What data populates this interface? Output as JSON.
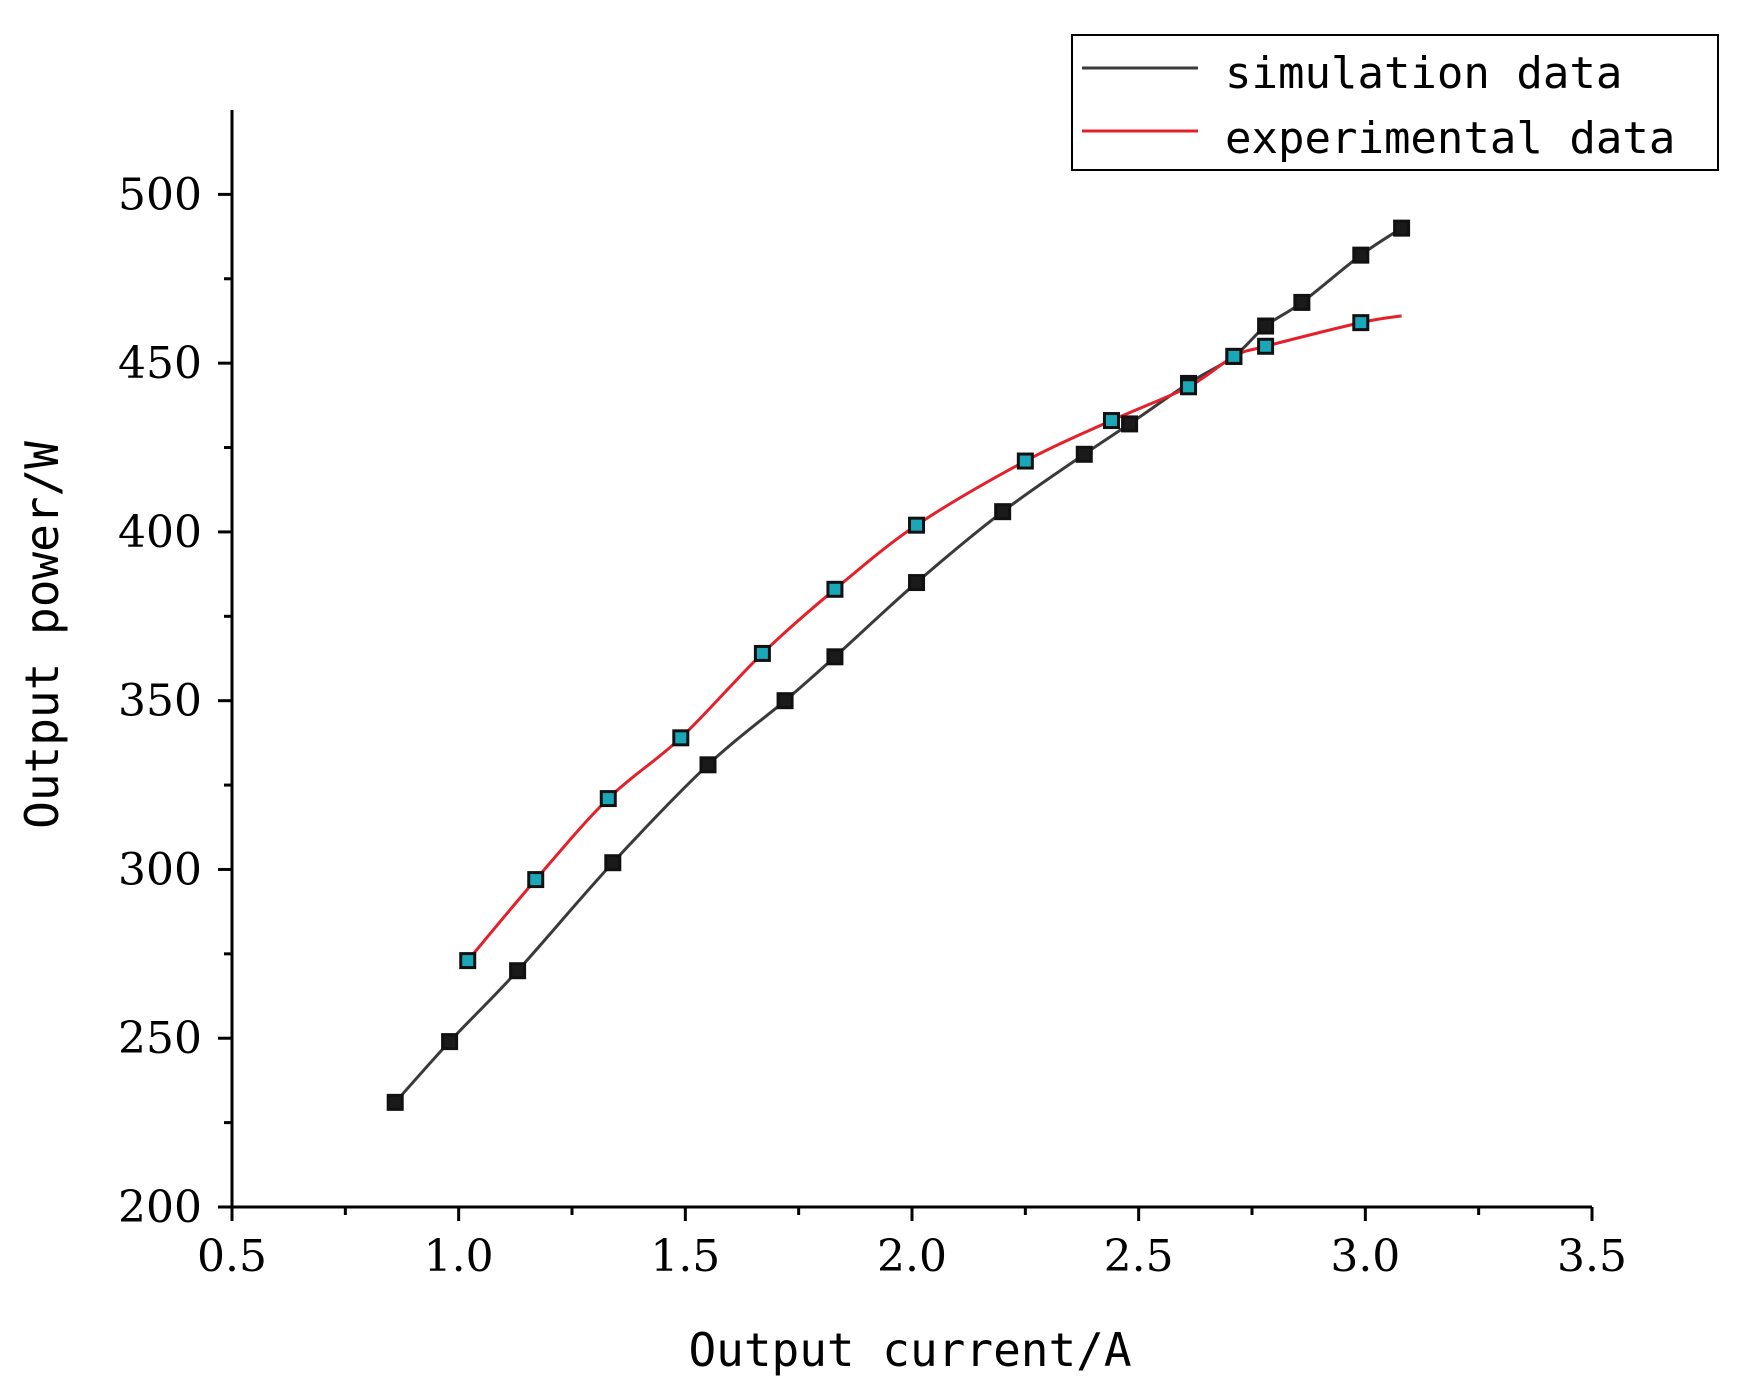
{
  "chart_data": {
    "type": "line",
    "title": "",
    "xlabel": "Output current/A",
    "ylabel": "Output power/W",
    "xlim": [
      0.5,
      3.5
    ],
    "ylim": [
      200,
      525
    ],
    "x_ticks": [
      "0.5",
      "1.0",
      "1.5",
      "2.0",
      "2.5",
      "3.0",
      "3.5"
    ],
    "y_ticks": [
      "200",
      "250",
      "300",
      "350",
      "400",
      "450",
      "500"
    ],
    "grid": false,
    "legend_position": "top-right",
    "series": [
      {
        "name": "simulation data",
        "color": "#3a3a3a",
        "marker_color": "#111111",
        "marker_fill": "#1a1a1a",
        "x": [
          0.86,
          0.98,
          1.13,
          1.34,
          1.55,
          1.72,
          1.83,
          2.01,
          2.2,
          2.38,
          2.48,
          2.61,
          2.71,
          2.78,
          2.86,
          2.99,
          3.08
        ],
        "y": [
          231,
          249,
          270,
          302,
          331,
          350,
          363,
          385,
          406,
          423,
          432,
          444,
          452,
          461,
          468,
          482,
          490
        ]
      },
      {
        "name": "experimental data",
        "color": "#e5202a",
        "marker_color": "#111111",
        "marker_fill": "#1aa8b8",
        "x": [
          1.02,
          1.17,
          1.33,
          1.49,
          1.67,
          1.83,
          2.01,
          2.25,
          2.44,
          2.61,
          2.71,
          2.78,
          2.99,
          3.08
        ],
        "y": [
          273,
          297,
          321,
          339,
          364,
          383,
          402,
          421,
          433,
          443,
          452,
          455,
          462,
          464
        ],
        "markers": [
          true,
          true,
          true,
          true,
          true,
          true,
          true,
          true,
          true,
          true,
          true,
          true,
          true,
          false
        ]
      }
    ]
  }
}
